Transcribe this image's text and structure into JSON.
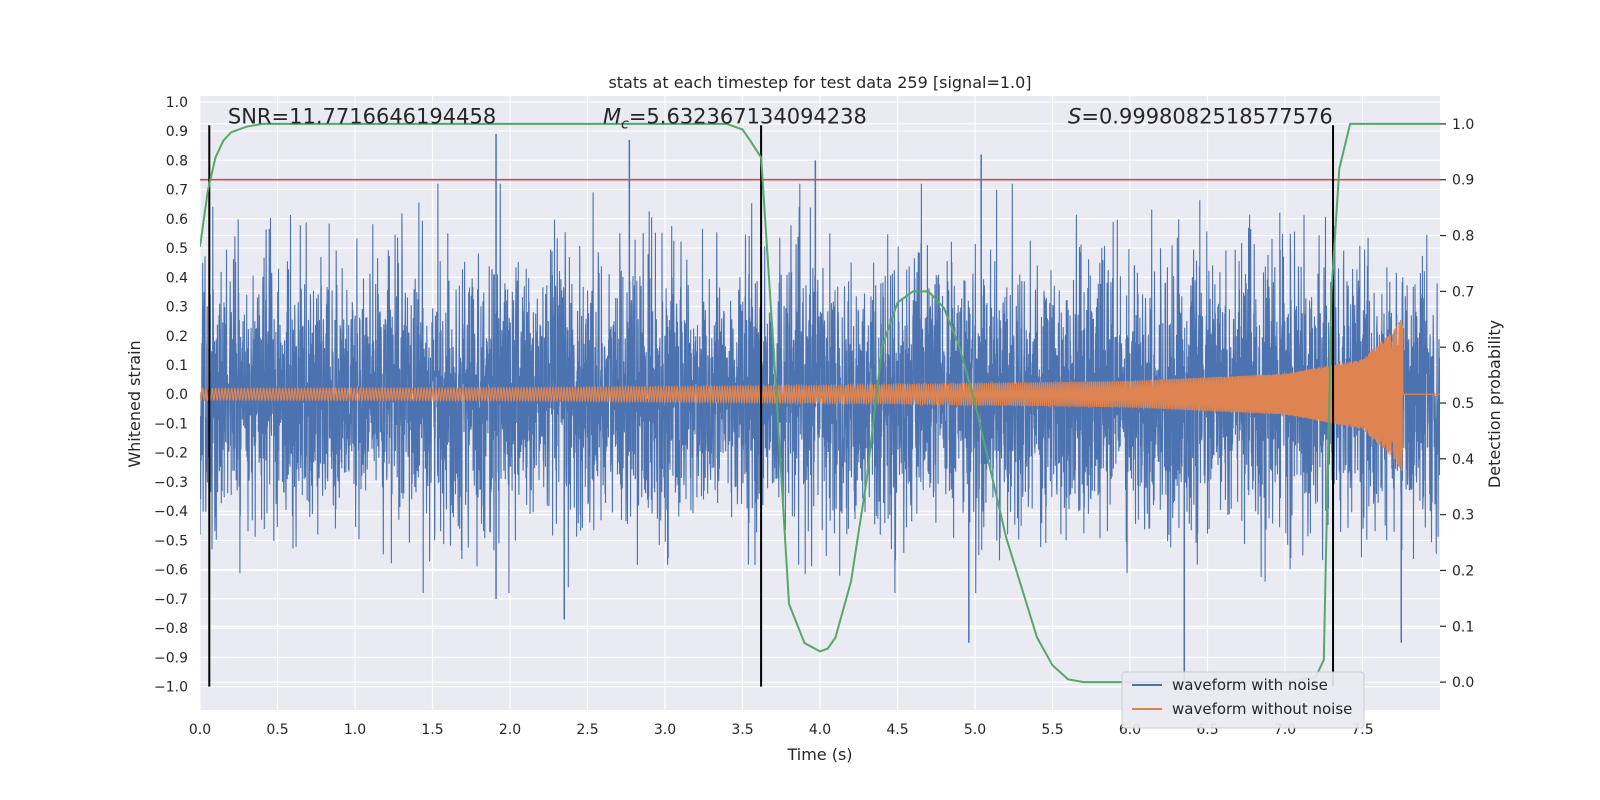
{
  "chart_data": {
    "type": "line",
    "title": "stats at each timestep for test data 259 [signal=1.0]",
    "xlabel": "Time (s)",
    "ylabel_left": "Whitened strain",
    "ylabel_right": "Detection probability",
    "xlim": [
      0.0,
      8.0
    ],
    "ylim_left": [
      -1.08,
      1.02
    ],
    "ylim_right": [
      -0.05,
      1.05
    ],
    "x_ticks": [
      0.0,
      0.5,
      1.0,
      1.5,
      2.0,
      2.5,
      3.0,
      3.5,
      4.0,
      4.5,
      5.0,
      5.5,
      6.0,
      6.5,
      7.0,
      7.5
    ],
    "x_tick_labels": [
      "0.0",
      "0.5",
      "1.0",
      "1.5",
      "2.0",
      "2.5",
      "3.0",
      "3.5",
      "4.0",
      "4.5",
      "5.0",
      "5.5",
      "6.0",
      "6.5",
      "7.0",
      "7.5"
    ],
    "y_left_ticks": [
      -1.0,
      -0.9,
      -0.8,
      -0.7,
      -0.6,
      -0.5,
      -0.4,
      -0.3,
      -0.2,
      -0.1,
      0.0,
      0.1,
      0.2,
      0.3,
      0.4,
      0.5,
      0.6,
      0.7,
      0.8,
      0.9,
      1.0
    ],
    "y_left_tick_labels": [
      "−1.0",
      "−0.9",
      "−0.8",
      "−0.7",
      "−0.6",
      "−0.5",
      "−0.4",
      "−0.3",
      "−0.2",
      "−0.1",
      "0.0",
      "0.1",
      "0.2",
      "0.3",
      "0.4",
      "0.5",
      "0.6",
      "0.7",
      "0.8",
      "0.9",
      "1.0"
    ],
    "y_right_ticks": [
      0.0,
      0.1,
      0.2,
      0.3,
      0.4,
      0.5,
      0.6,
      0.7,
      0.8,
      0.9,
      1.0
    ],
    "y_right_tick_labels": [
      "0.0",
      "0.1",
      "0.2",
      "0.3",
      "0.4",
      "0.5",
      "0.6",
      "0.7",
      "0.8",
      "0.9",
      "1.0"
    ],
    "grid": true,
    "annotations": [
      {
        "text": "SNR=11.7716646194458",
        "x": 0.18,
        "y": 0.95
      },
      {
        "text_prefix": "M",
        "text_sub": "c",
        "text_rest": "=5.632367134094238",
        "x": 2.6,
        "y": 0.95
      },
      {
        "text_prefix": "S",
        "text_rest": "=0.9998082518577576",
        "x": 5.6,
        "y": 0.95
      }
    ],
    "threshold_right": 0.9,
    "vertical_markers_x": [
      0.06,
      3.62,
      7.31
    ],
    "vertical_markers_ylim_left": [
      -1.0,
      0.92
    ],
    "series": [
      {
        "name": "waveform with noise",
        "color": "#4c72b0",
        "axis": "left",
        "kind": "noise",
        "x_range": [
          0.0,
          8.0
        ],
        "typical_amplitude": 0.22,
        "peak_range": [
          -0.85,
          0.9
        ],
        "tall_spikes": [
          {
            "x": 1.91,
            "y": 0.89
          },
          {
            "x": 2.77,
            "y": 0.87
          },
          {
            "x": 3.97,
            "y": 0.8
          },
          {
            "x": 5.04,
            "y": 0.82
          },
          {
            "x": 6.35,
            "y": -0.99
          },
          {
            "x": 4.96,
            "y": -0.85
          },
          {
            "x": 7.75,
            "y": -0.85
          },
          {
            "x": 2.35,
            "y": -0.77
          },
          {
            "x": 1.91,
            "y": -0.7
          }
        ]
      },
      {
        "name": "waveform without noise",
        "color": "#dd8452",
        "axis": "left",
        "kind": "chirp",
        "x_range": [
          0.0,
          8.0
        ],
        "merger_time": 7.76,
        "envelope_points": [
          [
            0.0,
            0.02
          ],
          [
            2.0,
            0.022
          ],
          [
            4.0,
            0.03
          ],
          [
            6.0,
            0.045
          ],
          [
            7.0,
            0.07
          ],
          [
            7.5,
            0.12
          ],
          [
            7.7,
            0.22
          ],
          [
            7.76,
            0.27
          ]
        ],
        "after_merger": 0.0
      },
      {
        "name": "Detection probability",
        "color": "#55a868",
        "axis": "right",
        "kind": "line",
        "x": [
          0.0,
          0.05,
          0.1,
          0.15,
          0.2,
          0.3,
          0.4,
          0.5,
          1.0,
          2.0,
          3.0,
          3.4,
          3.5,
          3.55,
          3.62,
          3.7,
          3.8,
          3.9,
          4.0,
          4.05,
          4.1,
          4.2,
          4.3,
          4.4,
          4.5,
          4.6,
          4.7,
          4.8,
          4.9,
          5.0,
          5.1,
          5.2,
          5.3,
          5.4,
          5.5,
          5.6,
          5.7,
          6.0,
          7.0,
          7.2,
          7.25,
          7.3,
          7.35,
          7.42,
          7.5,
          8.0
        ],
        "y": [
          0.78,
          0.88,
          0.94,
          0.97,
          0.985,
          0.995,
          1.0,
          1.0,
          1.0,
          1.0,
          1.0,
          1.0,
          0.99,
          0.97,
          0.94,
          0.6,
          0.14,
          0.07,
          0.055,
          0.06,
          0.08,
          0.18,
          0.36,
          0.6,
          0.68,
          0.7,
          0.7,
          0.67,
          0.6,
          0.5,
          0.38,
          0.26,
          0.17,
          0.08,
          0.03,
          0.005,
          0.0,
          0.0,
          0.0,
          0.01,
          0.04,
          0.7,
          0.92,
          1.0,
          1.0,
          1.0
        ]
      }
    ],
    "legend": {
      "placement": "lower-right",
      "entries": [
        "waveform with noise",
        "waveform without noise"
      ]
    },
    "colors": {
      "background": "#eaeaf2",
      "grid": "#ffffff",
      "threshold": "#c44e52",
      "marker": "#000000"
    }
  }
}
